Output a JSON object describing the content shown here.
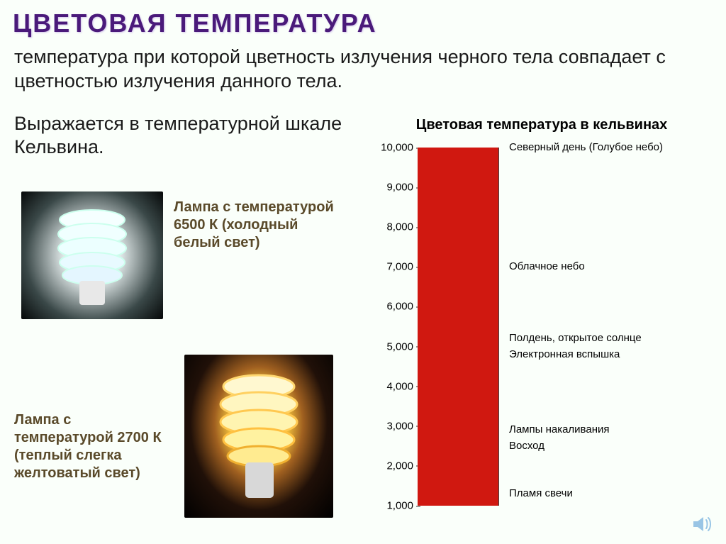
{
  "title": "ЦВЕТОВАЯ ТЕМПЕРАТУРА",
  "definition": "температура при которой цветность излучения черного тела совпадает с цветностью излучения данного тела.",
  "kelvin_note": "Выражается в температурной шкале Кельвина.",
  "lamp_cold_label": "Лампа с температурой 6500 К (холодный белый свет)",
  "lamp_warm_label": "Лампа с температурой 2700 К (теплый слегка желтоватый свет)",
  "chart": {
    "title": "Цветовая температура в кельвинах",
    "range_min": 1000,
    "range_max": 10000,
    "ticks": [
      {
        "value": 10000,
        "label": "10,000"
      },
      {
        "value": 9000,
        "label": "9,000"
      },
      {
        "value": 8000,
        "label": "8,000"
      },
      {
        "value": 7000,
        "label": "7,000"
      },
      {
        "value": 6000,
        "label": "6,000"
      },
      {
        "value": 5000,
        "label": "5,000"
      },
      {
        "value": 4000,
        "label": "4,000"
      },
      {
        "value": 3000,
        "label": "3,000"
      },
      {
        "value": 2000,
        "label": "2,000"
      },
      {
        "value": 1000,
        "label": "1,000"
      }
    ],
    "gradient_stops": [
      {
        "at": 1.0,
        "color": "#0099e6"
      },
      {
        "at": 0.62,
        "color": "#5fd8ee"
      },
      {
        "at": 0.5,
        "color": "#a8ecf0"
      },
      {
        "at": 0.42,
        "color": "#f4f7d0"
      },
      {
        "at": 0.34,
        "color": "#f6e96a"
      },
      {
        "at": 0.26,
        "color": "#f8c83c"
      },
      {
        "at": 0.18,
        "color": "#f88a28"
      },
      {
        "at": 0.1,
        "color": "#f04a1e"
      },
      {
        "at": 0.0,
        "color": "#d01810"
      }
    ],
    "side_labels": [
      {
        "at_value": 10000,
        "text": "Северный день (Голубое небо)"
      },
      {
        "at_value": 7000,
        "text": "Облачное небо"
      },
      {
        "at_value": 5200,
        "text": "Полдень, открытое солнце"
      },
      {
        "at_value": 4800,
        "text": "Электронная вспышка"
      },
      {
        "at_value": 2900,
        "text": "Лампы накаливания"
      },
      {
        "at_value": 2500,
        "text": "Восход"
      },
      {
        "at_value": 1300,
        "text": "Пламя свечи"
      }
    ]
  },
  "colors": {
    "title_color": "#4a1a7a",
    "body_text": "#1a1a1a",
    "label_brown": "#5a4a2a",
    "background": "#fafffa"
  }
}
